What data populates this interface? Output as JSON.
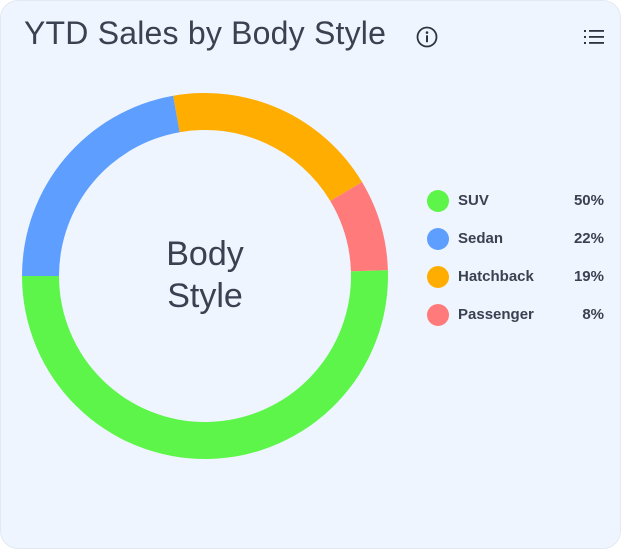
{
  "header": {
    "title": "YTD Sales by Body Style",
    "info_icon": "info-circle-icon",
    "menu_icon": "list-menu-icon"
  },
  "chart_data": {
    "type": "pie",
    "variant": "donut",
    "title": "YTD Sales by Body Style",
    "center_label_line1": "Body",
    "center_label_line2": "Style",
    "legend_position": "right",
    "series": [
      {
        "name": "SUV",
        "value": 50,
        "label": "50%",
        "color": "#5ef54a"
      },
      {
        "name": "Sedan",
        "value": 22,
        "label": "22%",
        "color": "#5d9eff"
      },
      {
        "name": "Hatchback",
        "value": 19,
        "label": "19%",
        "color": "#ffad00"
      },
      {
        "name": "Passenger",
        "value": 8,
        "label": "8%",
        "color": "#ff7b7b"
      }
    ]
  }
}
